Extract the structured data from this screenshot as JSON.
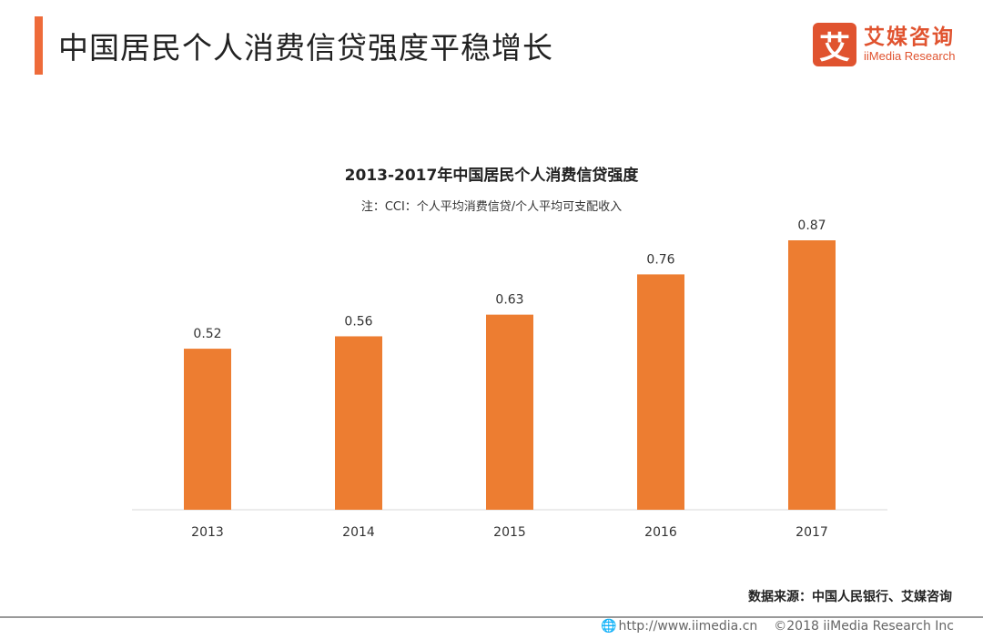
{
  "header": {
    "title": "中国居民个人消费信贷强度平稳增长"
  },
  "logo": {
    "mark": "艾",
    "cn": "艾媒咨询",
    "en": "iiMedia Research"
  },
  "chart_data": {
    "type": "bar",
    "title": "2013-2017年中国居民个人消费信贷强度",
    "subtitle": "注：CCI：个人平均消费信贷/个人平均可支配收入",
    "categories": [
      "2013",
      "2014",
      "2015",
      "2016",
      "2017"
    ],
    "values": [
      0.52,
      0.56,
      0.63,
      0.76,
      0.87
    ],
    "data_labels": [
      "0.52",
      "0.56",
      "0.63",
      "0.76",
      "0.87"
    ],
    "ylim": [
      0,
      0.87
    ],
    "grid": false,
    "color": "#ed7d31"
  },
  "source": "数据来源：中国人民银行、艾媒咨询",
  "footer": {
    "url": "http://www.iimedia.cn",
    "copyright": "©2018  iiMedia Research  Inc"
  }
}
